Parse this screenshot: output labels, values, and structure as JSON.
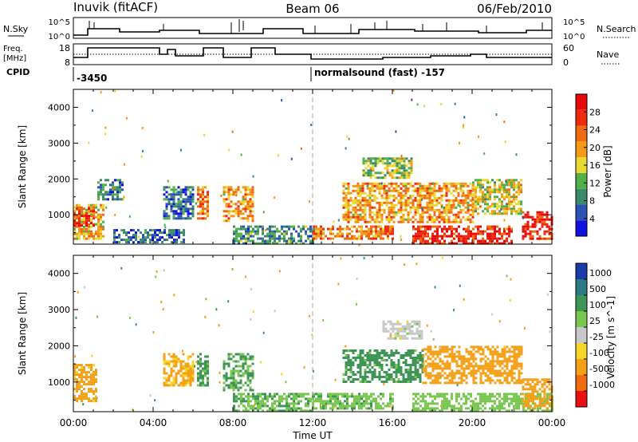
{
  "header": {
    "station": "Inuvik (fitACF)",
    "beam": "Beam 06",
    "date": "06/Feb/2010"
  },
  "top_panels": {
    "nsky_label": "N.Sky",
    "nsky_ticks": [
      "10^5",
      "10^0"
    ],
    "nsearch_label": "N.Search",
    "nsearch_ticks": [
      "10^5",
      "10^0"
    ],
    "freq_label_1": "Freq.",
    "freq_label_2": "[MHz]",
    "freq_ticks": [
      "18",
      "8"
    ],
    "nave_label": "Nave",
    "nave_ticks": [
      "60",
      "0"
    ],
    "cpid_label": "CPID",
    "cpid_1": "-3450",
    "cpid_2": "normalsound (fast) -157"
  },
  "axes": {
    "x_ticks": [
      "00:00",
      "04:00",
      "08:00",
      "12:00",
      "16:00",
      "20:00",
      "00:00"
    ],
    "xlabel": "Time UT",
    "ylabel": "Slant Range [km]",
    "y_ticks": [
      "1000",
      "2000",
      "3000",
      "4000"
    ]
  },
  "colors": {
    "power_scale": [
      "#1010e0",
      "#2c52b4",
      "#3c8a6c",
      "#52b04a",
      "#e8d830",
      "#f49a18",
      "#f06a10",
      "#ee2a10",
      "#e80a0a"
    ],
    "velocity_scale": [
      "#1a3aa8",
      "#2b7a84",
      "#3e9656",
      "#78c850",
      "#c8c8c8",
      "#f4d628",
      "#f4a018",
      "#f06a10",
      "#e81010"
    ]
  },
  "chart_data": [
    {
      "type": "heatmap",
      "title": "",
      "ylabel": "Slant Range [km]",
      "xlabel": "",
      "colorbar_label": "Power [dB]",
      "colorbar_ticks": [
        "28",
        "24",
        "20",
        "16",
        "12",
        "8",
        "4"
      ],
      "ylim": [
        180,
        4500
      ],
      "xlim": [
        0,
        24
      ],
      "regions": [
        {
          "t0": 0.0,
          "t1": 1.5,
          "r0": 300,
          "r1": 1300,
          "v": 18
        },
        {
          "t0": 0.0,
          "t1": 1.0,
          "r0": 700,
          "r1": 1200,
          "v": 27
        },
        {
          "t0": 1.2,
          "t1": 2.5,
          "r0": 1400,
          "r1": 2000,
          "v": 8
        },
        {
          "t0": 2.0,
          "t1": 5.5,
          "r0": 250,
          "r1": 600,
          "v": 6
        },
        {
          "t0": 4.5,
          "t1": 6.0,
          "r0": 900,
          "r1": 1800,
          "v": 7
        },
        {
          "t0": 6.2,
          "t1": 6.8,
          "r0": 900,
          "r1": 1800,
          "v": 22
        },
        {
          "t0": 7.5,
          "t1": 9.0,
          "r0": 800,
          "r1": 1800,
          "v": 20
        },
        {
          "t0": 8.0,
          "t1": 12.0,
          "r0": 200,
          "r1": 700,
          "v": 9
        },
        {
          "t0": 12.0,
          "t1": 16.0,
          "r0": 300,
          "r1": 700,
          "v": 22
        },
        {
          "t0": 13.5,
          "t1": 20.0,
          "r0": 800,
          "r1": 1900,
          "v": 20
        },
        {
          "t0": 14.5,
          "t1": 17.0,
          "r0": 2000,
          "r1": 2600,
          "v": 14
        },
        {
          "t0": 17.0,
          "t1": 22.0,
          "r0": 200,
          "r1": 700,
          "v": 28
        },
        {
          "t0": 20.0,
          "t1": 22.5,
          "r0": 1000,
          "r1": 2000,
          "v": 16
        },
        {
          "t0": 22.5,
          "t1": 24.0,
          "r0": 300,
          "r1": 1100,
          "v": 28
        }
      ]
    },
    {
      "type": "heatmap",
      "title": "",
      "ylabel": "Slant Range [km]",
      "xlabel": "Time UT",
      "colorbar_label": "Velocity [m s^-1]",
      "colorbar_ticks": [
        "1000",
        "500",
        "100",
        "25",
        "-25",
        "-100",
        "-500",
        "-1000"
      ],
      "ylim": [
        180,
        4500
      ],
      "xlim": [
        0,
        24
      ],
      "regions": [
        {
          "t0": 0.0,
          "t1": 1.2,
          "r0": 500,
          "r1": 1500,
          "v": -150
        },
        {
          "t0": 4.5,
          "t1": 6.0,
          "r0": 900,
          "r1": 1800,
          "v": -120
        },
        {
          "t0": 6.2,
          "t1": 6.8,
          "r0": 900,
          "r1": 1800,
          "v": 120
        },
        {
          "t0": 7.5,
          "t1": 9.0,
          "r0": 800,
          "r1": 1800,
          "v": 110
        },
        {
          "t0": 8.0,
          "t1": 12.0,
          "r0": 200,
          "r1": 700,
          "v": 90
        },
        {
          "t0": 12.0,
          "t1": 16.0,
          "r0": 300,
          "r1": 700,
          "v": 80
        },
        {
          "t0": 13.5,
          "t1": 17.5,
          "r0": 1000,
          "r1": 1900,
          "v": 150
        },
        {
          "t0": 15.5,
          "t1": 17.5,
          "r0": 2200,
          "r1": 2700,
          "v": 0
        },
        {
          "t0": 17.5,
          "t1": 22.5,
          "r0": 1000,
          "r1": 2000,
          "v": -180
        },
        {
          "t0": 17.0,
          "t1": 24.0,
          "r0": 200,
          "r1": 700,
          "v": 60
        },
        {
          "t0": 22.5,
          "t1": 24.0,
          "r0": 300,
          "r1": 1100,
          "v": -200
        }
      ]
    }
  ]
}
